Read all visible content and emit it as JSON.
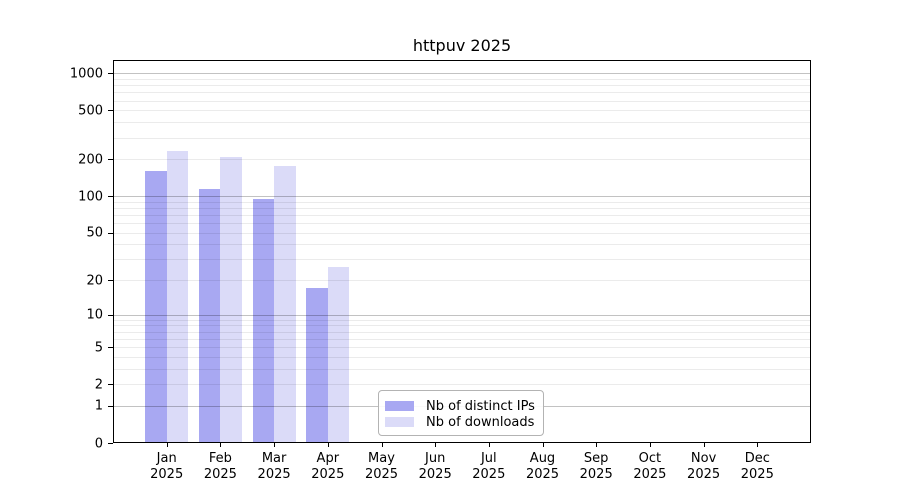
{
  "title": "httpuv 2025",
  "colors": {
    "ips_bar": "#a8a8f2",
    "downloads_bar": "#dbdbf8",
    "grid_major": "rgba(0,0,0,0.24)",
    "grid_minor": "rgba(0,0,0,0.08)",
    "spine": "#000000",
    "legend_border": "#b3b3b3"
  },
  "legend": {
    "items": [
      {
        "label": "Nb of distinct IPs",
        "color_key": "ips_bar"
      },
      {
        "label": "Nb of downloads",
        "color_key": "downloads_bar"
      }
    ]
  },
  "y_axis": {
    "ticks": [
      {
        "label": "0",
        "value": 0
      },
      {
        "label": "1",
        "value": 1
      },
      {
        "label": "2",
        "value": 2
      },
      {
        "label": "5",
        "value": 5
      },
      {
        "label": "10",
        "value": 10
      },
      {
        "label": "20",
        "value": 20
      },
      {
        "label": "50",
        "value": 50
      },
      {
        "label": "100",
        "value": 100
      },
      {
        "label": "200",
        "value": 200
      },
      {
        "label": "500",
        "value": 500
      },
      {
        "label": "1000",
        "value": 1000
      }
    ]
  },
  "x_axis": {
    "months": [
      "Jan",
      "Feb",
      "Mar",
      "Apr",
      "May",
      "Jun",
      "Jul",
      "Aug",
      "Sep",
      "Oct",
      "Nov",
      "Dec"
    ],
    "year": "2025"
  },
  "chart_data": {
    "type": "bar",
    "title": "httpuv 2025",
    "categories": [
      "Jan 2025",
      "Feb 2025",
      "Mar 2025",
      "Apr 2025",
      "May 2025",
      "Jun 2025",
      "Jul 2025",
      "Aug 2025",
      "Sep 2025",
      "Oct 2025",
      "Nov 2025",
      "Dec 2025"
    ],
    "series": [
      {
        "name": "Nb of distinct IPs",
        "values": [
          160,
          115,
          95,
          17,
          0,
          0,
          0,
          0,
          0,
          0,
          0,
          0
        ]
      },
      {
        "name": "Nb of downloads",
        "values": [
          235,
          210,
          175,
          26,
          0,
          0,
          0,
          0,
          0,
          0,
          0,
          0
        ]
      }
    ],
    "xlabel": "",
    "ylabel": "",
    "yscale": "log10(x+1)",
    "ylim": [
      0,
      1000
    ],
    "grid": true,
    "grid_major_at": [
      1,
      10,
      100,
      1000
    ],
    "legend_position": "lower center-right inside plot"
  }
}
